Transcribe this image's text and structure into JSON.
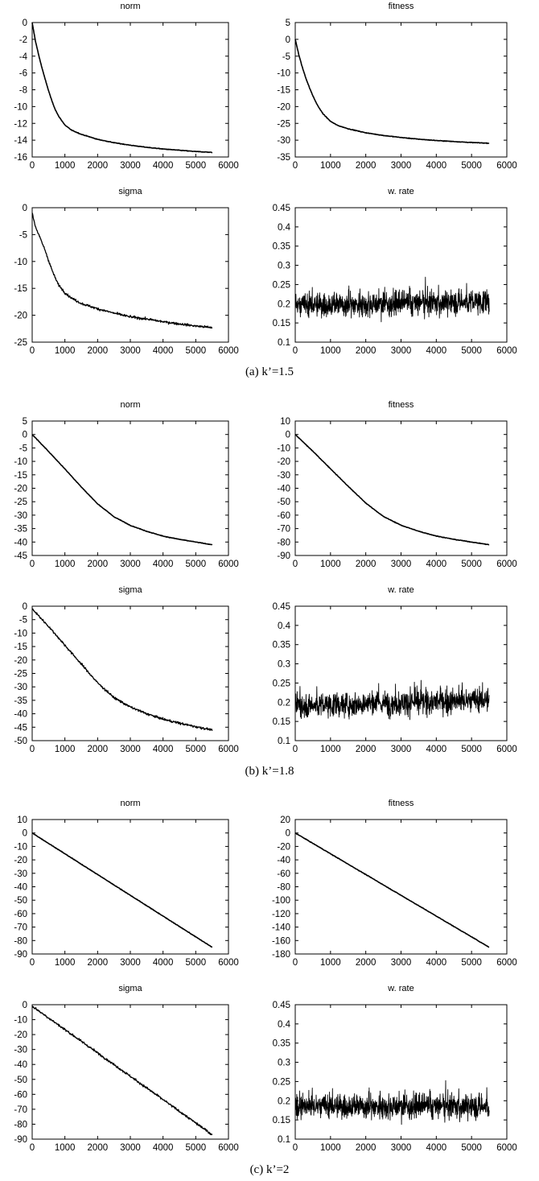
{
  "figure": {
    "captions": [
      "(a) k’=1.5",
      "(b) k’=1.8",
      "(c) k’=2"
    ]
  },
  "chart_data": [
    {
      "group": "(a) k’=1.5",
      "type": "line",
      "title": "norm",
      "xlim": [
        0,
        6000
      ],
      "ylim": [
        -16,
        0
      ],
      "xticks": [
        0,
        1000,
        2000,
        3000,
        4000,
        5000,
        6000
      ],
      "yticks": [
        -16,
        -14,
        -12,
        -10,
        -8,
        -6,
        -4,
        -2,
        0
      ],
      "series": [
        {
          "x": [
            0,
            100,
            200,
            300,
            400,
            500,
            600,
            700,
            800,
            1000,
            1200,
            1500,
            2000,
            2500,
            3000,
            3500,
            4000,
            4500,
            5000,
            5500
          ],
          "values": [
            0,
            -2.2,
            -3.9,
            -5.4,
            -6.8,
            -8.1,
            -9.3,
            -10.3,
            -11.1,
            -12.2,
            -12.8,
            -13.3,
            -13.9,
            -14.3,
            -14.6,
            -14.85,
            -15.05,
            -15.2,
            -15.35,
            -15.45
          ]
        }
      ]
    },
    {
      "group": "(a) k’=1.5",
      "type": "line",
      "title": "fitness",
      "xlim": [
        0,
        6000
      ],
      "ylim": [
        -35,
        5
      ],
      "xticks": [
        0,
        1000,
        2000,
        3000,
        4000,
        5000,
        6000
      ],
      "yticks": [
        -35,
        -30,
        -25,
        -20,
        -15,
        -10,
        -5,
        0,
        5
      ],
      "series": [
        {
          "x": [
            0,
            100,
            200,
            300,
            400,
            500,
            600,
            700,
            800,
            1000,
            1200,
            1500,
            2000,
            2500,
            3000,
            3500,
            4000,
            4500,
            5000,
            5500
          ],
          "values": [
            0,
            -4.5,
            -8.3,
            -11.5,
            -14.3,
            -16.8,
            -19.0,
            -20.8,
            -22.3,
            -24.4,
            -25.6,
            -26.6,
            -27.8,
            -28.6,
            -29.2,
            -29.7,
            -30.1,
            -30.4,
            -30.7,
            -30.9
          ]
        }
      ]
    },
    {
      "group": "(a) k’=1.5",
      "type": "line",
      "title": "sigma",
      "xlim": [
        0,
        6000
      ],
      "ylim": [
        -25,
        0
      ],
      "xticks": [
        0,
        1000,
        2000,
        3000,
        4000,
        5000,
        6000
      ],
      "yticks": [
        -25,
        -20,
        -15,
        -10,
        -5,
        0
      ],
      "series": [
        {
          "x": [
            0,
            100,
            200,
            300,
            400,
            500,
            600,
            700,
            800,
            1000,
            1200,
            1500,
            2000,
            2500,
            3000,
            3500,
            4000,
            4500,
            5000,
            5500
          ],
          "values": [
            -1,
            -3.5,
            -5.0,
            -6.5,
            -8.0,
            -9.8,
            -11.5,
            -13.0,
            -14.3,
            -15.8,
            -16.8,
            -17.8,
            -18.8,
            -19.6,
            -20.3,
            -20.7,
            -21.2,
            -21.6,
            -22.0,
            -22.3
          ]
        }
      ]
    },
    {
      "group": "(a) k’=1.5",
      "type": "line",
      "title": "w. rate",
      "xlim": [
        0,
        6000
      ],
      "ylim": [
        0.1,
        0.45
      ],
      "xticks": [
        0,
        1000,
        2000,
        3000,
        4000,
        5000,
        6000
      ],
      "yticks": [
        0.1,
        0.15,
        0.2,
        0.25,
        0.3,
        0.35,
        0.4,
        0.45
      ],
      "series": [
        {
          "x": [
            0,
            5500
          ],
          "values": [
            0.195,
            0.205
          ]
        }
      ]
    },
    {
      "group": "(b) k’=1.8",
      "type": "line",
      "title": "norm",
      "xlim": [
        0,
        6000
      ],
      "ylim": [
        -45,
        5
      ],
      "xticks": [
        0,
        1000,
        2000,
        3000,
        4000,
        5000,
        6000
      ],
      "yticks": [
        -45,
        -40,
        -35,
        -30,
        -25,
        -20,
        -15,
        -10,
        -5,
        0,
        5
      ],
      "series": [
        {
          "x": [
            0,
            500,
            1000,
            1500,
            2000,
            2500,
            3000,
            3500,
            4000,
            4500,
            5000,
            5500
          ],
          "values": [
            0,
            -6.3,
            -12.8,
            -19.5,
            -25.8,
            -30.6,
            -33.8,
            -36.0,
            -37.8,
            -39.0,
            -40.0,
            -41.0
          ]
        }
      ]
    },
    {
      "group": "(b) k’=1.8",
      "type": "line",
      "title": "fitness",
      "xlim": [
        0,
        6000
      ],
      "ylim": [
        -90,
        10
      ],
      "xticks": [
        0,
        1000,
        2000,
        3000,
        4000,
        5000,
        6000
      ],
      "yticks": [
        -90,
        -80,
        -70,
        -60,
        -50,
        -40,
        -30,
        -20,
        -10,
        0,
        10
      ],
      "series": [
        {
          "x": [
            0,
            500,
            1000,
            1500,
            2000,
            2500,
            3000,
            3500,
            4000,
            4500,
            5000,
            5500
          ],
          "values": [
            0,
            -12.5,
            -25.5,
            -38.5,
            -51.0,
            -61.0,
            -67.5,
            -72.0,
            -75.5,
            -78.0,
            -80.0,
            -82.0
          ]
        }
      ]
    },
    {
      "group": "(b) k’=1.8",
      "type": "line",
      "title": "sigma",
      "xlim": [
        0,
        6000
      ],
      "ylim": [
        -50,
        0
      ],
      "xticks": [
        0,
        1000,
        2000,
        3000,
        4000,
        5000,
        6000
      ],
      "yticks": [
        -50,
        -45,
        -40,
        -35,
        -30,
        -25,
        -20,
        -15,
        -10,
        -5,
        0
      ],
      "series": [
        {
          "x": [
            0,
            500,
            1000,
            1500,
            2000,
            2500,
            3000,
            3500,
            4000,
            4500,
            5000,
            5500
          ],
          "values": [
            -1,
            -7.5,
            -14.5,
            -21.5,
            -28.5,
            -34.0,
            -37.5,
            -40.0,
            -42.0,
            -43.5,
            -44.8,
            -46.0
          ]
        }
      ]
    },
    {
      "group": "(b) k’=1.8",
      "type": "line",
      "title": "w. rate",
      "xlim": [
        0,
        6000
      ],
      "ylim": [
        0.1,
        0.45
      ],
      "xticks": [
        0,
        1000,
        2000,
        3000,
        4000,
        5000,
        6000
      ],
      "yticks": [
        0.1,
        0.15,
        0.2,
        0.25,
        0.3,
        0.35,
        0.4,
        0.45
      ],
      "series": [
        {
          "x": [
            0,
            5500
          ],
          "values": [
            0.19,
            0.205
          ]
        }
      ]
    },
    {
      "group": "(c) k’=2",
      "type": "line",
      "title": "norm",
      "xlim": [
        0,
        6000
      ],
      "ylim": [
        -90,
        10
      ],
      "xticks": [
        0,
        1000,
        2000,
        3000,
        4000,
        5000,
        6000
      ],
      "yticks": [
        -90,
        -80,
        -70,
        -60,
        -50,
        -40,
        -30,
        -20,
        -10,
        0,
        10
      ],
      "series": [
        {
          "x": [
            0,
            5500
          ],
          "values": [
            0,
            -85
          ]
        }
      ]
    },
    {
      "group": "(c) k’=2",
      "type": "line",
      "title": "fitness",
      "xlim": [
        0,
        6000
      ],
      "ylim": [
        -180,
        20
      ],
      "xticks": [
        0,
        1000,
        2000,
        3000,
        4000,
        5000,
        6000
      ],
      "yticks": [
        -180,
        -160,
        -140,
        -120,
        -100,
        -80,
        -60,
        -40,
        -20,
        0,
        20
      ],
      "series": [
        {
          "x": [
            0,
            5500
          ],
          "values": [
            0,
            -170
          ]
        }
      ]
    },
    {
      "group": "(c) k’=2",
      "type": "line",
      "title": "sigma",
      "xlim": [
        0,
        6000
      ],
      "ylim": [
        -90,
        0
      ],
      "xticks": [
        0,
        1000,
        2000,
        3000,
        4000,
        5000,
        6000
      ],
      "yticks": [
        -90,
        -80,
        -70,
        -60,
        -50,
        -40,
        -30,
        -20,
        -10,
        0
      ],
      "series": [
        {
          "x": [
            0,
            5500
          ],
          "values": [
            -1,
            -87
          ]
        }
      ]
    },
    {
      "group": "(c) k’=2",
      "type": "line",
      "title": "w. rate",
      "xlim": [
        0,
        6000
      ],
      "ylim": [
        0.1,
        0.45
      ],
      "xticks": [
        0,
        1000,
        2000,
        3000,
        4000,
        5000,
        6000
      ],
      "yticks": [
        0.1,
        0.15,
        0.2,
        0.25,
        0.3,
        0.35,
        0.4,
        0.45
      ],
      "series": [
        {
          "x": [
            0,
            5500
          ],
          "values": [
            0.185,
            0.185
          ]
        }
      ]
    }
  ]
}
